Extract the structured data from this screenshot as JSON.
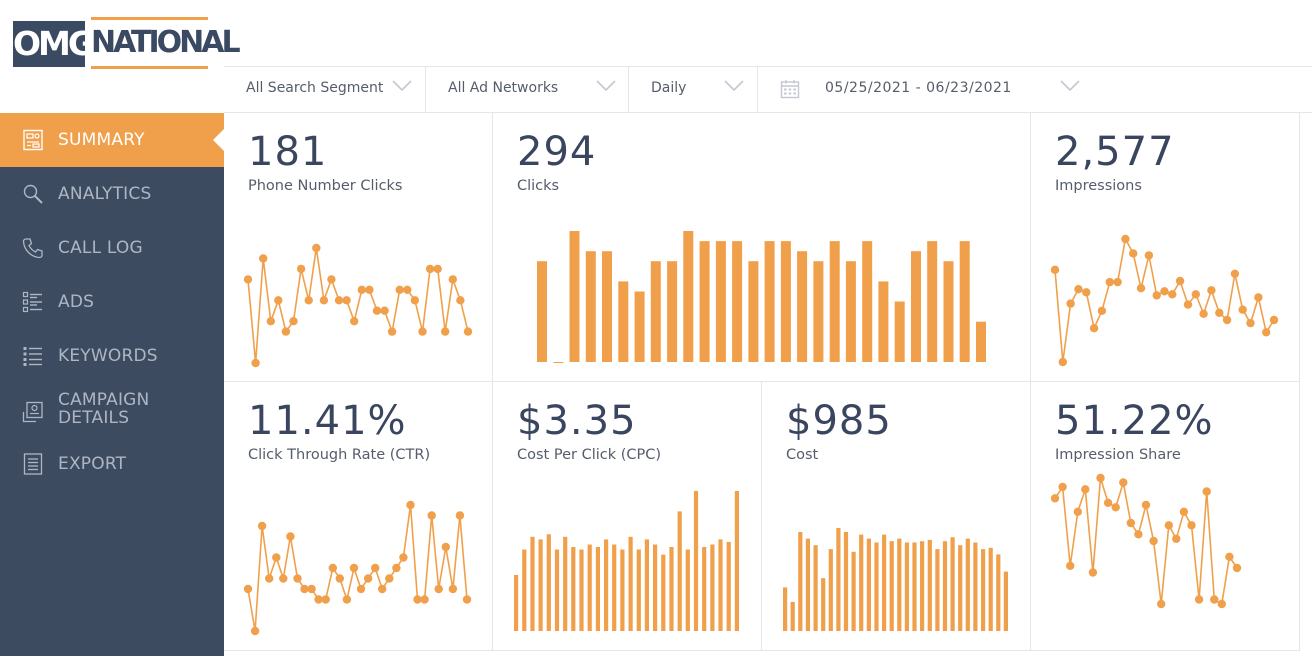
{
  "logo": {
    "left": "OMG",
    "right": "NATIONAL"
  },
  "nav": [
    {
      "label": "SUMMARY",
      "icon": "summary-icon",
      "active": true
    },
    {
      "label": "ANALYTICS",
      "icon": "magnifier-icon"
    },
    {
      "label": "CALL LOG",
      "icon": "phone-icon"
    },
    {
      "label": "ADS",
      "icon": "list-icon"
    },
    {
      "label": "KEYWORDS",
      "icon": "bullet-list-icon"
    },
    {
      "label": "CAMPAIGN DETAILS",
      "icon": "campaign-icon"
    },
    {
      "label": "EXPORT",
      "icon": "document-icon"
    }
  ],
  "filters": {
    "segment": "All Search Segment",
    "network": "All Ad Networks",
    "interval": "Daily",
    "date_range": "05/25/2021 - 06/23/2021"
  },
  "colors": {
    "accent": "#f0a04b",
    "sidebar": "#3d4b61",
    "value_text": "#3a4660"
  },
  "metrics": {
    "phone": {
      "value": "181",
      "label": "Phone Number Clicks"
    },
    "clicks": {
      "value": "294",
      "label": "Clicks"
    },
    "impressions": {
      "value": "2,577",
      "label": "Impressions"
    },
    "ctr": {
      "value": "11.41%",
      "label": "Click Through Rate (CTR)"
    },
    "cpc": {
      "value": "$3.35",
      "label": "Cost Per Click (CPC)"
    },
    "cost": {
      "value": "$985",
      "label": "Cost"
    },
    "share": {
      "value": "51.22%",
      "label": "Impression Share"
    }
  },
  "chart_data": [
    {
      "id": "phone",
      "type": "line",
      "values": [
        8,
        0,
        10,
        4,
        6,
        3,
        4,
        9,
        6,
        11,
        6,
        8,
        6,
        6,
        4,
        7,
        7,
        5,
        5,
        3,
        7,
        7,
        6,
        3,
        9,
        9,
        3,
        8,
        6,
        3
      ]
    },
    {
      "id": "clicks",
      "type": "bar",
      "values": [
        10,
        0,
        13,
        11,
        11,
        8,
        7,
        10,
        10,
        13,
        12,
        12,
        12,
        10,
        12,
        12,
        11,
        10,
        12,
        10,
        12,
        8,
        6,
        11,
        12,
        10,
        12,
        4
      ]
    },
    {
      "id": "impressions",
      "type": "line",
      "values": [
        90,
        0,
        57,
        71,
        68,
        33,
        50,
        78,
        78,
        120,
        106,
        72,
        104,
        65,
        69,
        66,
        79,
        56,
        66,
        47,
        70,
        48,
        41,
        86,
        51,
        38,
        63,
        29,
        41
      ]
    },
    {
      "id": "ctr",
      "type": "bar_line",
      "values": [
        4,
        0,
        10,
        5,
        7,
        5,
        9,
        5,
        4,
        4,
        3,
        3,
        6,
        5,
        3,
        6,
        4,
        5,
        6,
        4,
        5,
        6,
        7,
        12,
        3,
        3,
        11,
        4,
        8,
        4,
        11,
        3
      ]
    },
    {
      "id": "cpc",
      "type": "bar",
      "values": [
        2.2,
        3.2,
        3.7,
        3.6,
        3.8,
        3.2,
        3.7,
        3.3,
        3.2,
        3.4,
        3.3,
        3.6,
        3.4,
        3.2,
        3.7,
        3.2,
        3.6,
        3.4,
        3.0,
        3.3,
        4.7,
        3.2,
        5.5,
        3.3,
        3.4,
        3.6,
        3.5,
        5.5
      ]
    },
    {
      "id": "cost",
      "type": "bar",
      "values": [
        33,
        22,
        75,
        70,
        65,
        40,
        62,
        78,
        75,
        60,
        73,
        70,
        67,
        73,
        68,
        70,
        67,
        67,
        68,
        69,
        62,
        68,
        71,
        65,
        70,
        67,
        62,
        63,
        58,
        45
      ]
    },
    {
      "id": "share",
      "type": "line",
      "values": [
        62,
        67,
        32,
        56,
        66,
        29,
        71,
        60,
        58,
        69,
        51,
        46,
        59,
        43,
        15,
        50,
        44,
        56,
        50,
        17,
        65,
        17,
        15,
        36,
        31
      ]
    }
  ]
}
